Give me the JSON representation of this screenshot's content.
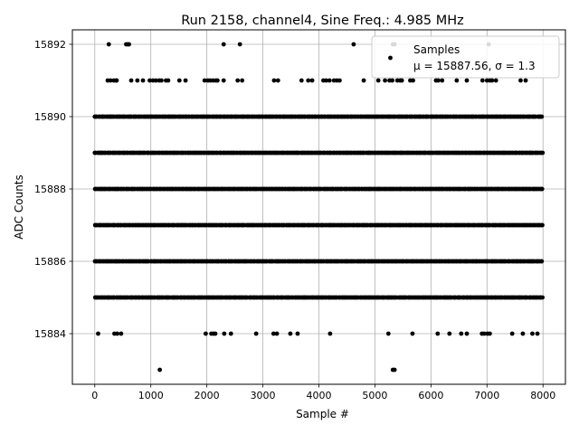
{
  "chart_data": {
    "type": "scatter",
    "title": "Run 2158, channel4, Sine Freq.: 4.985 MHz",
    "xlabel": "Sample #",
    "ylabel": "ADC Counts",
    "xlim": [
      -400,
      8400
    ],
    "ylim": [
      15882.6,
      15892.4
    ],
    "xticks": [
      0,
      1000,
      2000,
      3000,
      4000,
      5000,
      6000,
      7000,
      8000
    ],
    "yticks": [
      15884,
      15886,
      15888,
      15890,
      15892
    ],
    "grid": true,
    "legend": {
      "placement": "top-right",
      "entries": [
        {
          "label": "Samples"
        },
        {
          "label": "μ = 15887.56, σ = 1.3"
        }
      ]
    },
    "series": [
      {
        "name": "Samples",
        "marker_color": "#000000",
        "x_range": [
          0,
          8000
        ],
        "dense_levels": [
          15885,
          15886,
          15887,
          15888,
          15889,
          15890
        ],
        "sparse_points": [
          {
            "y": 15892,
            "x": [
              250,
              560,
              590,
              610,
              2300,
              2590,
              4620,
              5320,
              5350,
              7030
            ]
          },
          {
            "y": 15891,
            "x": [
              230,
              280,
              340,
              380,
              390,
              650,
              760,
              860,
              980,
              1040,
              1090,
              1150,
              1190,
              1270,
              1310,
              1510,
              1620,
              1960,
              2020,
              2060,
              2110,
              2160,
              2190,
              2300,
              2550,
              2630,
              3200,
              3270,
              3690,
              3810,
              3880,
              4080,
              4130,
              4190,
              4270,
              4320,
              4370,
              4800,
              5060,
              5180,
              5260,
              5310,
              5400,
              5450,
              5480,
              5630,
              5680,
              6090,
              6130,
              6200,
              6460,
              6640,
              6920,
              7000,
              7050,
              7090,
              7160,
              7600,
              7690
            ]
          },
          {
            "y": 15884,
            "x": [
              60,
              350,
              400,
              470,
              1980,
              2080,
              2120,
              2150,
              2310,
              2430,
              2880,
              3190,
              3250,
              3490,
              3620,
              4200,
              5240,
              5670,
              6120,
              6330,
              6540,
              6640,
              6910,
              6950,
              7010,
              7050,
              7450,
              7640,
              7810,
              7900
            ]
          },
          {
            "y": 15883,
            "x": [
              1160,
              5320,
              5350
            ]
          }
        ]
      }
    ]
  }
}
